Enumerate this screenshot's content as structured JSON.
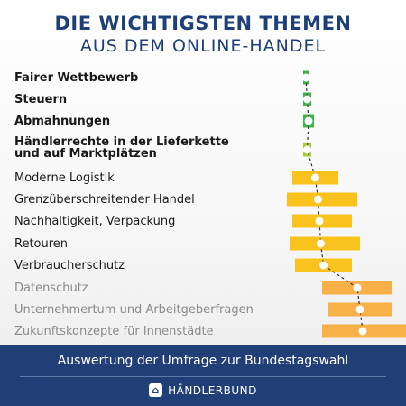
{
  "title_line1": "DIE WICHTIGSTEN THEMEN",
  "title_line2": "AUS DEM ONLINE-HANDEL",
  "footer_text": "Auswertung der Umfrage zur Bundestagswahl",
  "brand": "HÄNDLERBUND",
  "brand_icon": "handlerbund-logo-icon",
  "colors": {
    "title": "#1d3f7a",
    "footer_bg": "#1f3f76",
    "green": "#41b14a",
    "light_green": "#a9cd36",
    "yellow": "#f9c21c",
    "orange": "#f8b048"
  },
  "chart_data": {
    "type": "ranking-with-range",
    "categories": [
      "Fairer Wettbewerb",
      "Steuern",
      "Abmahnungen",
      "Händlerrechte in der Lieferkette\nund auf Marktplätzen",
      "Moderne Logistik",
      "Grenzüberschreitender Handel",
      "Nachhaltigkeit, Verpackung",
      "Retouren",
      "Verbraucherschutz",
      "Datenschutz",
      "Unternehmertum und Arbeitgeberfragen",
      "Zukunftskonzepte für Innenstädte"
    ],
    "emphasis": [
      "bold",
      "bold",
      "bold",
      "bold",
      "normal",
      "normal",
      "normal",
      "normal",
      "normal",
      "muted",
      "muted",
      "muted"
    ],
    "colors": [
      "green",
      "green",
      "green",
      "light_green",
      "yellow",
      "yellow",
      "yellow",
      "yellow",
      "yellow",
      "orange",
      "orange",
      "orange"
    ],
    "points": [
      {
        "low": 2.4,
        "mid": 2.6,
        "high": 2.8
      },
      {
        "low": 2.4,
        "mid": 2.7,
        "high": 3.0
      },
      {
        "low": 2.4,
        "mid": 2.8,
        "high": 3.2
      },
      {
        "low": 2.4,
        "mid": 2.7,
        "high": 3.0
      },
      {
        "low": 1.6,
        "mid": 3.3,
        "high": 5.0
      },
      {
        "low": 1.2,
        "mid": 3.5,
        "high": 6.4
      },
      {
        "low": 1.6,
        "mid": 3.6,
        "high": 6.0
      },
      {
        "low": 1.4,
        "mid": 3.7,
        "high": 6.6
      },
      {
        "low": 1.8,
        "mid": 3.9,
        "high": 6.0
      },
      {
        "low": 3.8,
        "mid": 6.4,
        "high": 9.0
      },
      {
        "low": 4.2,
        "mid": 6.6,
        "high": 9.0
      },
      {
        "low": 3.8,
        "mid": 6.8,
        "high": 10.0
      }
    ],
    "xlim": [
      0,
      10
    ],
    "grid": false,
    "legend": "none"
  }
}
